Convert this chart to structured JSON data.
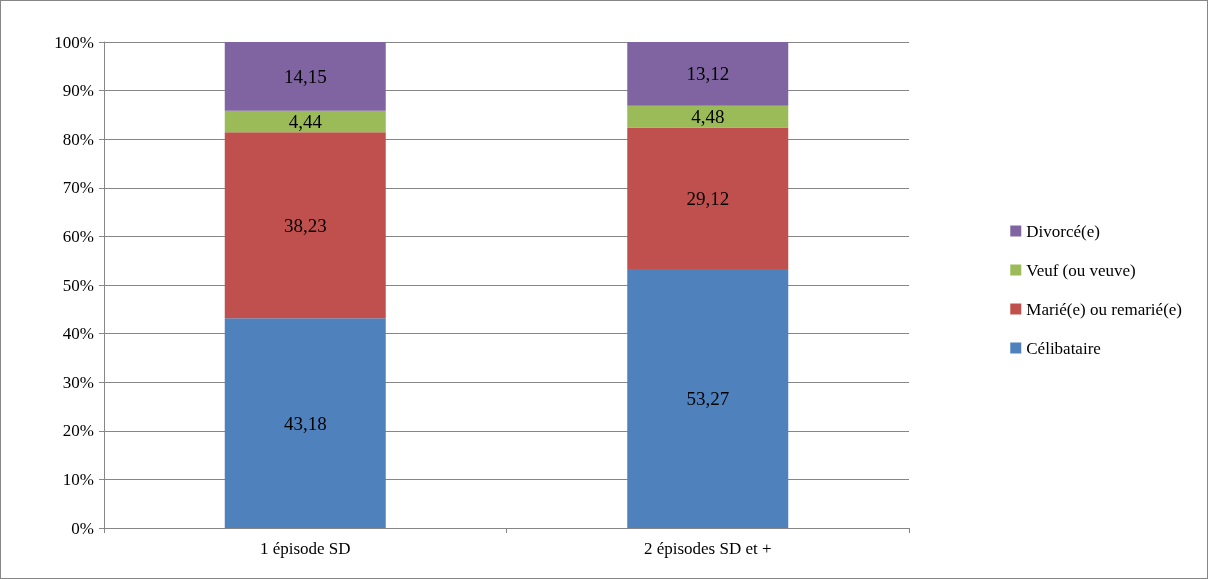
{
  "chart_data": {
    "type": "bar",
    "stacked": true,
    "categories": [
      "1 épisode SD",
      "2 épisodes SD et +"
    ],
    "series": [
      {
        "name": "Célibataire",
        "color": "#4f81bd",
        "values": [
          43.18,
          53.27
        ],
        "value_labels": [
          "43,18",
          "53,27"
        ]
      },
      {
        "name": "Marié(e) ou remarié(e)",
        "color": "#c0504d",
        "values": [
          38.23,
          29.12
        ],
        "value_labels": [
          "38,23",
          "29,12"
        ]
      },
      {
        "name": "Veuf (ou veuve)",
        "color": "#9bbb59",
        "values": [
          4.44,
          4.48
        ],
        "value_labels": [
          "4,44",
          "4,48"
        ]
      },
      {
        "name": "Divorcé(e)",
        "color": "#8064a2",
        "values": [
          14.15,
          13.12
        ],
        "value_labels": [
          "14,15",
          "13,12"
        ]
      }
    ],
    "ylim": [
      0,
      100
    ],
    "yticks": [
      {
        "value": 0,
        "label": "0%"
      },
      {
        "value": 10,
        "label": "10%"
      },
      {
        "value": 20,
        "label": "20%"
      },
      {
        "value": 30,
        "label": "30%"
      },
      {
        "value": 40,
        "label": "40%"
      },
      {
        "value": 50,
        "label": "50%"
      },
      {
        "value": 60,
        "label": "60%"
      },
      {
        "value": 70,
        "label": "70%"
      },
      {
        "value": 80,
        "label": "80%"
      },
      {
        "value": 90,
        "label": "90%"
      },
      {
        "value": 100,
        "label": "100%"
      }
    ],
    "grid": "y",
    "legend": "right"
  }
}
